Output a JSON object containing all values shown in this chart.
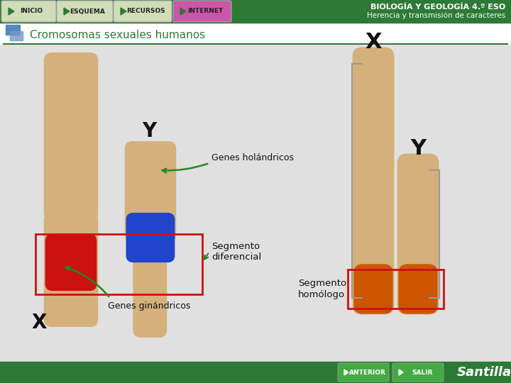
{
  "title_bar": "BIOLOGÍA Y GEOLOGÍA 4.º ESO",
  "title_sub": "Herencia y transmisión de caracteres",
  "nav_buttons": [
    "INICIO",
    "ESQUEMA",
    "RECURSOS",
    "INTERNET"
  ],
  "nav_colors": [
    "#d0ddb8",
    "#d0ddb8",
    "#d0ddb8",
    "#cc55aa"
  ],
  "header_bg": "#2d7a36",
  "footer_bg": "#2d7a36",
  "main_bg": "#e0e0e0",
  "section_bg": "#f0f0f0",
  "section_title": "Cromosomas sexuales humanos",
  "section_title_color": "#2d7a36",
  "label_Y_left": "Y",
  "label_X_left": "X",
  "label_X_right": "X",
  "label_Y_right": "Y",
  "text_genes_holandricos": "Genes holándricos",
  "text_segmento_diferencial": "Segmento\ndiferencial",
  "text_genes_ginandricos": "Genes ginándricos",
  "text_segmento_homologo": "Segmento\nhomólogo",
  "chrom_color": "#d4b07a",
  "chrom_edge": "#b8955a",
  "red_color": "#cc1111",
  "blue_color": "#2244cc",
  "orange_color": "#cc5500",
  "box_color": "#cc1111",
  "arrow_color": "#228822",
  "text_color": "#111111",
  "white_color": "#ffffff",
  "footer_btn_color": "#44aa44",
  "footer_btn1": "ANTERIOR",
  "footer_btn2": "SALIR",
  "footer_brand": "Santillana"
}
